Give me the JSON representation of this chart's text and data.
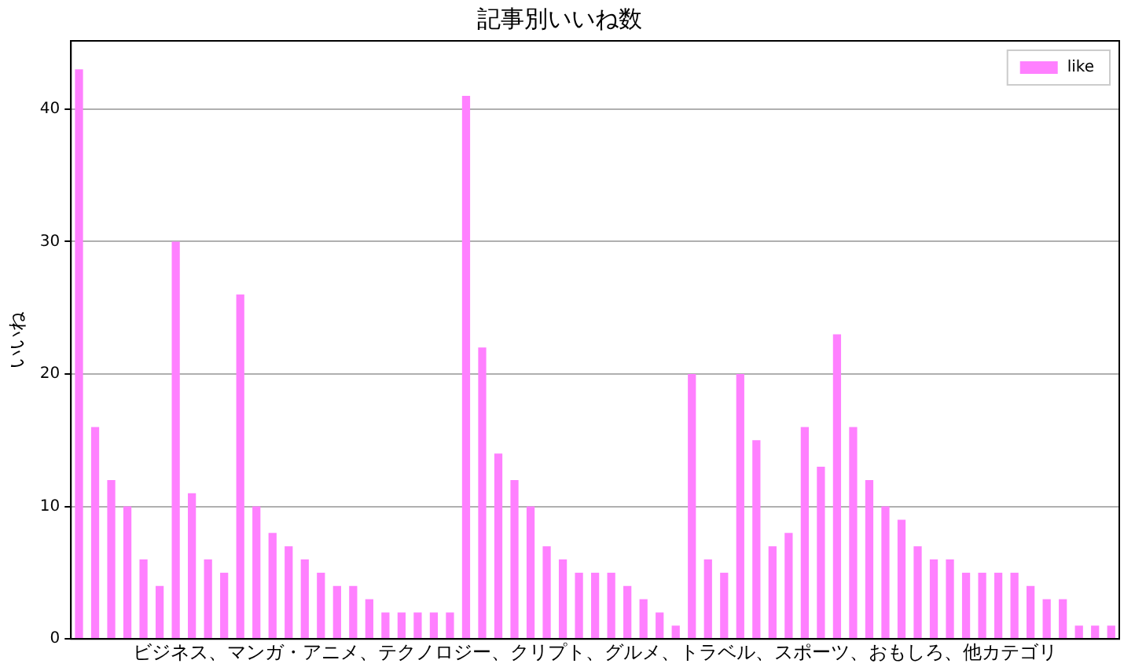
{
  "chart_data": {
    "type": "bar",
    "title": "記事別いいね数",
    "xlabel": "ビジネス、マンガ・アニメ、テクノロジー、クリプト、グルメ、トラベル、スポーツ、おもしろ、他カテゴリ",
    "ylabel": "いいね",
    "categories": [
      null,
      null,
      null,
      null,
      null,
      null,
      null,
      null,
      null,
      null,
      null,
      null,
      null,
      null,
      null,
      null,
      null,
      null,
      null,
      null,
      null,
      null,
      null,
      null,
      null,
      null,
      null,
      null,
      null,
      null,
      null,
      null,
      null,
      null,
      null,
      null,
      null,
      null,
      null,
      null,
      null,
      null,
      null,
      null,
      null,
      null,
      null,
      null,
      null,
      null,
      null,
      null,
      null,
      null,
      null,
      null,
      null,
      null,
      null,
      null,
      null,
      null,
      null,
      null,
      null
    ],
    "series": [
      {
        "name": "like",
        "color": "#ff80ff",
        "values": [
          43,
          16,
          12,
          10,
          6,
          4,
          30,
          11,
          6,
          5,
          26,
          10,
          8,
          7,
          6,
          5,
          4,
          4,
          3,
          2,
          2,
          2,
          2,
          2,
          41,
          22,
          14,
          12,
          10,
          7,
          6,
          5,
          5,
          5,
          4,
          3,
          2,
          1,
          20,
          6,
          5,
          20,
          15,
          7,
          8,
          16,
          13,
          23,
          16,
          12,
          10,
          9,
          7,
          6,
          6,
          5,
          5,
          5,
          5,
          4,
          3,
          3,
          1,
          1,
          1
        ]
      }
    ],
    "ylim": [
      0,
      45.15
    ],
    "yticks": [
      0,
      10,
      20,
      30,
      40
    ],
    "grid": "y",
    "legend": "top right"
  }
}
